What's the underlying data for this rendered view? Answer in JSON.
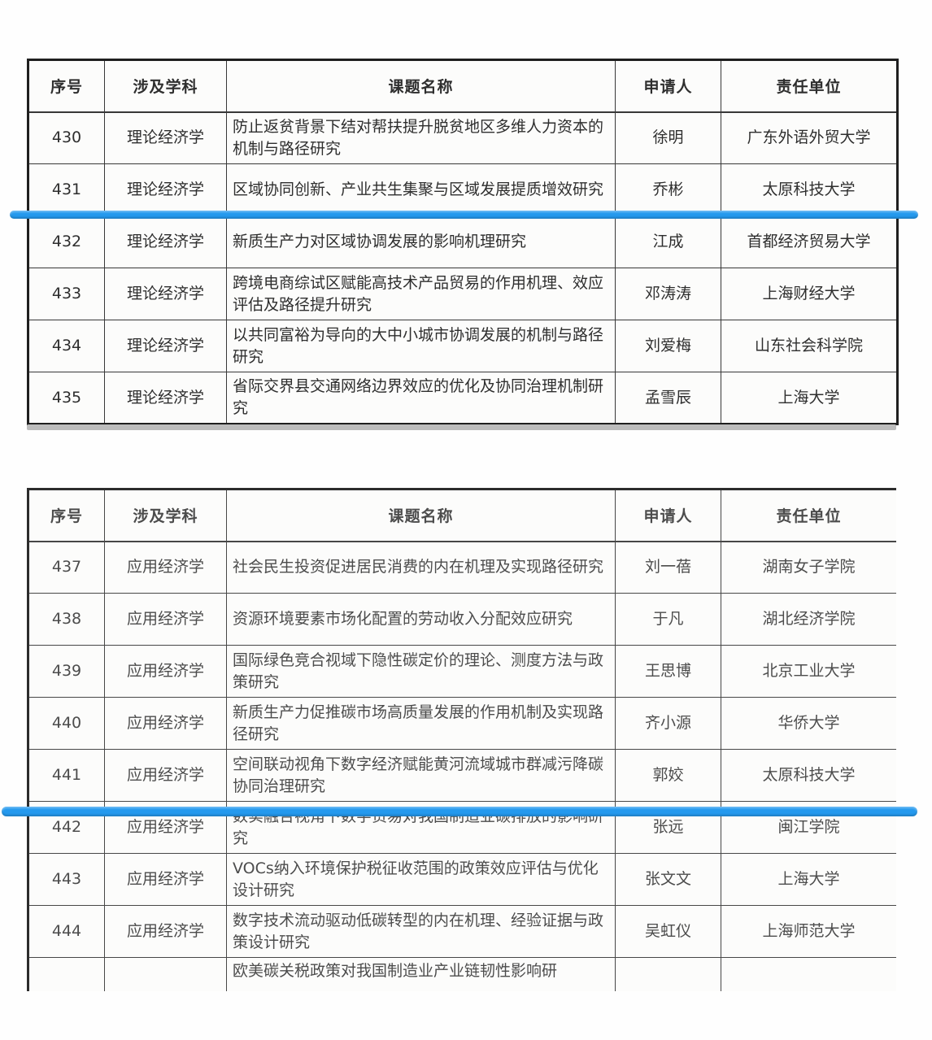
{
  "columns": [
    "序号",
    "涉及学科",
    "课题名称",
    "申请人",
    "责任单位"
  ],
  "annotation": {
    "highlight_color": "#2499ee",
    "highlighted_serials": [
      "431",
      "441"
    ]
  },
  "table1": {
    "rows": [
      {
        "no": "430",
        "discipline": "理论经济学",
        "title": "防止返贫背景下结对帮扶提升脱贫地区多维人力资本的机制与路径研究",
        "applicant": "徐明",
        "institution": "广东外语外贸大学"
      },
      {
        "no": "431",
        "discipline": "理论经济学",
        "title": "区域协同创新、产业共生集聚与区域发展提质增效研究",
        "applicant": "乔彬",
        "institution": "太原科技大学"
      },
      {
        "no": "432",
        "discipline": "理论经济学",
        "title": "新质生产力对区域协调发展的影响机理研究",
        "applicant": "江成",
        "institution": "首都经济贸易大学"
      },
      {
        "no": "433",
        "discipline": "理论经济学",
        "title": "跨境电商综试区赋能高技术产品贸易的作用机理、效应评估及路径提升研究",
        "applicant": "邓涛涛",
        "institution": "上海财经大学"
      },
      {
        "no": "434",
        "discipline": "理论经济学",
        "title": "以共同富裕为导向的大中小城市协调发展的机制与路径研究",
        "applicant": "刘爱梅",
        "institution": "山东社会科学院"
      },
      {
        "no": "435",
        "discipline": "理论经济学",
        "title": "省际交界县交通网络边界效应的优化及协同治理机制研究",
        "applicant": "孟雪辰",
        "institution": "上海大学"
      }
    ]
  },
  "table2": {
    "rows": [
      {
        "no": "437",
        "discipline": "应用经济学",
        "title": "社会民生投资促进居民消费的内在机理及实现路径研究",
        "applicant": "刘一蓓",
        "institution": "湖南女子学院"
      },
      {
        "no": "438",
        "discipline": "应用经济学",
        "title": "资源环境要素市场化配置的劳动收入分配效应研究",
        "applicant": "于凡",
        "institution": "湖北经济学院"
      },
      {
        "no": "439",
        "discipline": "应用经济学",
        "title": "国际绿色竞合视域下隐性碳定价的理论、测度方法与政策研究",
        "applicant": "王思博",
        "institution": "北京工业大学"
      },
      {
        "no": "440",
        "discipline": "应用经济学",
        "title": "新质生产力促推碳市场高质量发展的作用机制及实现路径研究",
        "applicant": "齐小源",
        "institution": "华侨大学"
      },
      {
        "no": "441",
        "discipline": "应用经济学",
        "title": "空间联动视角下数字经济赋能黄河流域城市群减污降碳协同治理研究",
        "applicant": "郭姣",
        "institution": "太原科技大学"
      },
      {
        "no": "442",
        "discipline": "应用经济学",
        "title": "数实融合视角下数字贸易对我国制造业碳排放的影响研究",
        "applicant": "张远",
        "institution": "闽江学院"
      },
      {
        "no": "443",
        "discipline": "应用经济学",
        "title": "VOCs纳入环境保护税征收范围的政策效应评估与优化设计研究",
        "applicant": "张文文",
        "institution": "上海大学"
      },
      {
        "no": "444",
        "discipline": "应用经济学",
        "title": "数字技术流动驱动低碳转型的内在机理、经验证据与政策设计研究",
        "applicant": "吴虹仪",
        "institution": "上海师范大学"
      },
      {
        "no": "",
        "discipline": "",
        "title": "欧美碳关税政策对我国制造业产业链韧性影响研",
        "applicant": "",
        "institution": "",
        "partial": true
      }
    ]
  }
}
